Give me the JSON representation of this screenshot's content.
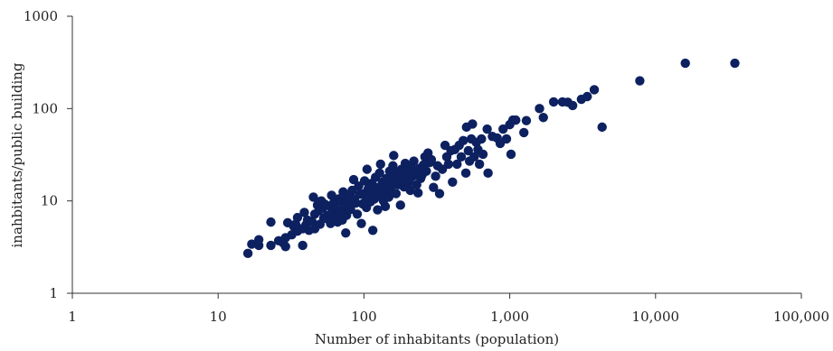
{
  "chart_data": {
    "type": "scatter",
    "title": "",
    "xlabel": "Number of inhabitants (population)",
    "ylabel": "inahbitants/public building",
    "x_scale": "log",
    "y_scale": "log",
    "xlim": [
      1,
      100000
    ],
    "ylim": [
      1,
      1000
    ],
    "x_tick_labels": [
      "1",
      "10",
      "100",
      "1,000",
      "10,000",
      "100,000"
    ],
    "y_tick_labels": [
      "1",
      "10",
      "100",
      "1000"
    ],
    "grid": false,
    "legend": "none",
    "marker_color": "#0d2160",
    "series": [
      {
        "points": [
          [
            16,
            2.7
          ],
          [
            17,
            3.4
          ],
          [
            19,
            3.3
          ],
          [
            19,
            3.8
          ],
          [
            23,
            3.3
          ],
          [
            23,
            5.9
          ],
          [
            26,
            3.7
          ],
          [
            28,
            3.5
          ],
          [
            29,
            3.2
          ],
          [
            29,
            4.0
          ],
          [
            30,
            5.8
          ],
          [
            32,
            4.3
          ],
          [
            33,
            5.3
          ],
          [
            34,
            5.6
          ],
          [
            35,
            6.6
          ],
          [
            35,
            4.7
          ],
          [
            36,
            5.0
          ],
          [
            38,
            3.3
          ],
          [
            38,
            5.0
          ],
          [
            39,
            7.5
          ],
          [
            40,
            5.5
          ],
          [
            41,
            6.2
          ],
          [
            42,
            4.8
          ],
          [
            44,
            6.0
          ],
          [
            45,
            11.0
          ],
          [
            46,
            7.2
          ],
          [
            46,
            5.0
          ],
          [
            48,
            9.0
          ],
          [
            49,
            7.8
          ],
          [
            50,
            5.6
          ],
          [
            51,
            10.0
          ],
          [
            52,
            8.4
          ],
          [
            53,
            6.5
          ],
          [
            54,
            9.2
          ],
          [
            56,
            7.0
          ],
          [
            57,
            6.3
          ],
          [
            58,
            8.8
          ],
          [
            59,
            5.7
          ],
          [
            60,
            11.5
          ],
          [
            61,
            7.6
          ],
          [
            62,
            9.5
          ],
          [
            63,
            6.6
          ],
          [
            64,
            8.2
          ],
          [
            66,
            5.9
          ],
          [
            67,
            10.5
          ],
          [
            68,
            7.3
          ],
          [
            70,
            9.8
          ],
          [
            71,
            6.2
          ],
          [
            72,
            12.5
          ],
          [
            73,
            8.6
          ],
          [
            75,
            4.5
          ],
          [
            75,
            10.2
          ],
          [
            76,
            7.0
          ],
          [
            78,
            11.0
          ],
          [
            79,
            9.0
          ],
          [
            81,
            8.1
          ],
          [
            83,
            13.0
          ],
          [
            85,
            17.0
          ],
          [
            86,
            10.5
          ],
          [
            88,
            9.5
          ],
          [
            90,
            7.2
          ],
          [
            92,
            14.5
          ],
          [
            94,
            11.8
          ],
          [
            96,
            5.7
          ],
          [
            98,
            9.3
          ],
          [
            100,
            12.0
          ],
          [
            101,
            16.5
          ],
          [
            103,
            10.0
          ],
          [
            104,
            8.5
          ],
          [
            105,
            22.0
          ],
          [
            107,
            13.5
          ],
          [
            109,
            11.2
          ],
          [
            111,
            9.8
          ],
          [
            113,
            15.5
          ],
          [
            115,
            4.8
          ],
          [
            116,
            12.7
          ],
          [
            118,
            10.5
          ],
          [
            120,
            18.0
          ],
          [
            122,
            14.0
          ],
          [
            124,
            8.0
          ],
          [
            126,
            11.5
          ],
          [
            128,
            20.0
          ],
          [
            130,
            25.0
          ],
          [
            132,
            13.0
          ],
          [
            134,
            16.0
          ],
          [
            136,
            10.0
          ],
          [
            138,
            12.2
          ],
          [
            140,
            8.7
          ],
          [
            143,
            17.5
          ],
          [
            145,
            14.8
          ],
          [
            148,
            11.0
          ],
          [
            150,
            21.0
          ],
          [
            153,
            13.5
          ],
          [
            156,
            19.0
          ],
          [
            158,
            24.0
          ],
          [
            160,
            31.0
          ],
          [
            163,
            16.2
          ],
          [
            166,
            12.0
          ],
          [
            169,
            20.5
          ],
          [
            172,
            15.0
          ],
          [
            175,
            18.0
          ],
          [
            178,
            9.0
          ],
          [
            181,
            22.0
          ],
          [
            185,
            17.5
          ],
          [
            188,
            14.2
          ],
          [
            192,
            25.5
          ],
          [
            196,
            19.5
          ],
          [
            200,
            21.5
          ],
          [
            204,
            16.0
          ],
          [
            208,
            13.0
          ],
          [
            212,
            23.0
          ],
          [
            216,
            18.5
          ],
          [
            220,
            27.0
          ],
          [
            225,
            20.0
          ],
          [
            230,
            15.0
          ],
          [
            235,
            12.2
          ],
          [
            240,
            22.5
          ],
          [
            245,
            17.5
          ],
          [
            250,
            19.0
          ],
          [
            256,
            24.5
          ],
          [
            262,
            30.0
          ],
          [
            268,
            21.0
          ],
          [
            275,
            33.0
          ],
          [
            282,
            26.0
          ],
          [
            290,
            28.0
          ],
          [
            300,
            14.0
          ],
          [
            310,
            18.5
          ],
          [
            320,
            24.0
          ],
          [
            330,
            12.0
          ],
          [
            345,
            22.0
          ],
          [
            360,
            40.0
          ],
          [
            370,
            30.0
          ],
          [
            380,
            25.0
          ],
          [
            395,
            35.0
          ],
          [
            405,
            16.0
          ],
          [
            420,
            36.0
          ],
          [
            435,
            25.0
          ],
          [
            450,
            40.0
          ],
          [
            465,
            30.0
          ],
          [
            480,
            45.0
          ],
          [
            500,
            20.0
          ],
          [
            505,
            63.0
          ],
          [
            520,
            35.0
          ],
          [
            530,
            27.0
          ],
          [
            545,
            47.0
          ],
          [
            555,
            68.0
          ],
          [
            570,
            30.0
          ],
          [
            590,
            43.0
          ],
          [
            605,
            36.0
          ],
          [
            620,
            25.0
          ],
          [
            640,
            47.0
          ],
          [
            655,
            32.0
          ],
          [
            700,
            60.0
          ],
          [
            710,
            20.0
          ],
          [
            760,
            50.0
          ],
          [
            820,
            48.0
          ],
          [
            860,
            42.0
          ],
          [
            900,
            60.0
          ],
          [
            950,
            47.0
          ],
          [
            1000,
            67.0
          ],
          [
            1020,
            32.0
          ],
          [
            1050,
            75.0
          ],
          [
            1100,
            75.0
          ],
          [
            1250,
            55.0
          ],
          [
            1300,
            74.0
          ],
          [
            1600,
            100.0
          ],
          [
            1700,
            80.0
          ],
          [
            2000,
            118.0
          ],
          [
            2300,
            118.0
          ],
          [
            2500,
            117.0
          ],
          [
            2700,
            108.0
          ],
          [
            3100,
            126.0
          ],
          [
            3400,
            135.0
          ],
          [
            3800,
            160.0
          ],
          [
            4300,
            63.0
          ],
          [
            7800,
            200.0
          ],
          [
            16000,
            310.0
          ],
          [
            35000,
            310.0
          ]
        ]
      }
    ]
  }
}
